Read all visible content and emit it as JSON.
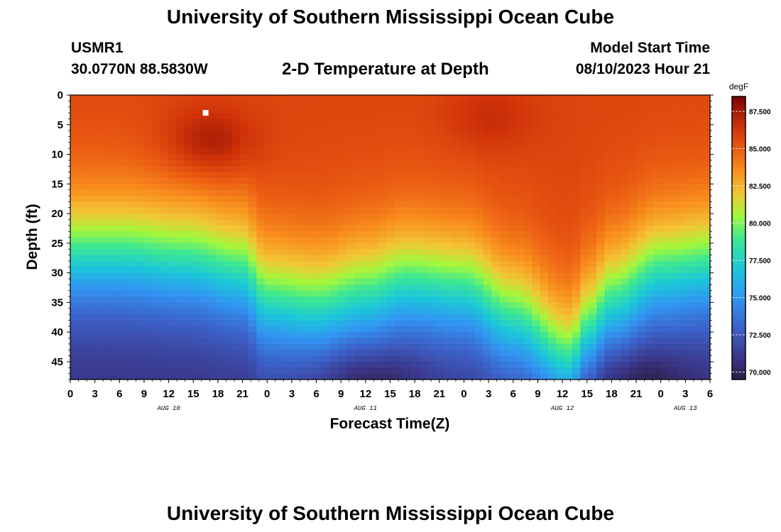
{
  "page": {
    "title": "University of Southern Mississippi Ocean Cube",
    "footer_title": "University of Southern Mississippi Ocean Cube",
    "station_id": "USMR1",
    "station_coords": "30.0770N  88.5830W",
    "subtitle": "2-D Temperature at Depth",
    "model_start_label": "Model Start Time",
    "model_start_value": "08/10/2023 Hour 21"
  },
  "chart_data": {
    "type": "heatmap",
    "xlabel": "Forecast Time(Z)",
    "ylabel": "Depth (ft)",
    "x_ticks": [
      "0",
      "3",
      "6",
      "9",
      "12",
      "15",
      "18",
      "21",
      "0",
      "3",
      "6",
      "9",
      "12",
      "15",
      "18",
      "21",
      "0",
      "3",
      "6",
      "9",
      "12",
      "15",
      "18",
      "21",
      "0",
      "3",
      "6"
    ],
    "date_labels": [
      {
        "label": "AUG 10",
        "at_tick": 4
      },
      {
        "label": "AUG 11",
        "at_tick": 12
      },
      {
        "label": "AUG 12",
        "at_tick": 20
      },
      {
        "label": "AUG 13",
        "at_tick": 25
      }
    ],
    "y_ticks": [
      "0",
      "5",
      "10",
      "15",
      "20",
      "25",
      "30",
      "35",
      "40",
      "45"
    ],
    "ylim": [
      0,
      48
    ],
    "xlim_hours": [
      0,
      78
    ],
    "colorbar": {
      "unit": "degF",
      "min": 69.5,
      "max": 88.5,
      "ticks": [
        "87.500",
        "85.000",
        "82.500",
        "80.000",
        "77.500",
        "75.000",
        "72.500",
        "70.000"
      ],
      "stops": [
        {
          "value": 69.5,
          "color": "#2b1d44"
        },
        {
          "value": 71.0,
          "color": "#3b3688"
        },
        {
          "value": 73.0,
          "color": "#3c61c8"
        },
        {
          "value": 75.0,
          "color": "#3295f2"
        },
        {
          "value": 77.0,
          "color": "#1bc8d9"
        },
        {
          "value": 79.0,
          "color": "#3ee891"
        },
        {
          "value": 80.5,
          "color": "#a2f83c"
        },
        {
          "value": 82.0,
          "color": "#f2c635"
        },
        {
          "value": 83.5,
          "color": "#f9901e"
        },
        {
          "value": 85.0,
          "color": "#ea5a12"
        },
        {
          "value": 86.5,
          "color": "#cf3209"
        },
        {
          "value": 88.5,
          "color": "#7a0403"
        }
      ]
    },
    "surface_temp_degF": 85.8,
    "deep_temp_degF": 70.5,
    "thermocline_mid_depth_ft": [
      {
        "hour": 0,
        "depth": 27
      },
      {
        "hour": 6,
        "depth": 27
      },
      {
        "hour": 14,
        "depth": 28
      },
      {
        "hour": 21,
        "depth": 30
      },
      {
        "hour": 24,
        "depth": 35
      },
      {
        "hour": 30,
        "depth": 36
      },
      {
        "hour": 36,
        "depth": 34
      },
      {
        "hour": 41,
        "depth": 32
      },
      {
        "hour": 48,
        "depth": 33
      },
      {
        "hour": 54,
        "depth": 38
      },
      {
        "hour": 61,
        "depth": 45
      },
      {
        "hour": 63,
        "depth": 40
      },
      {
        "hour": 66,
        "depth": 35
      },
      {
        "hour": 72,
        "depth": 30
      },
      {
        "hour": 78,
        "depth": 29
      }
    ],
    "bottom_cold_pools": [
      {
        "hour": 36,
        "depth": 48,
        "value": 69.8
      },
      {
        "hour": 69,
        "depth": 48,
        "value": 69.8
      },
      {
        "hour": 0,
        "depth": 48,
        "value": 71.5
      }
    ],
    "surface_warm_spots": [
      {
        "hour": 17,
        "depth": 8,
        "value": 87.8
      },
      {
        "hour": 51,
        "depth": 4,
        "value": 86.8
      },
      {
        "hour": 58,
        "depth": 8,
        "value": 85.8
      }
    ],
    "hot_marker": {
      "hour": 16.5,
      "depth": 3
    }
  }
}
